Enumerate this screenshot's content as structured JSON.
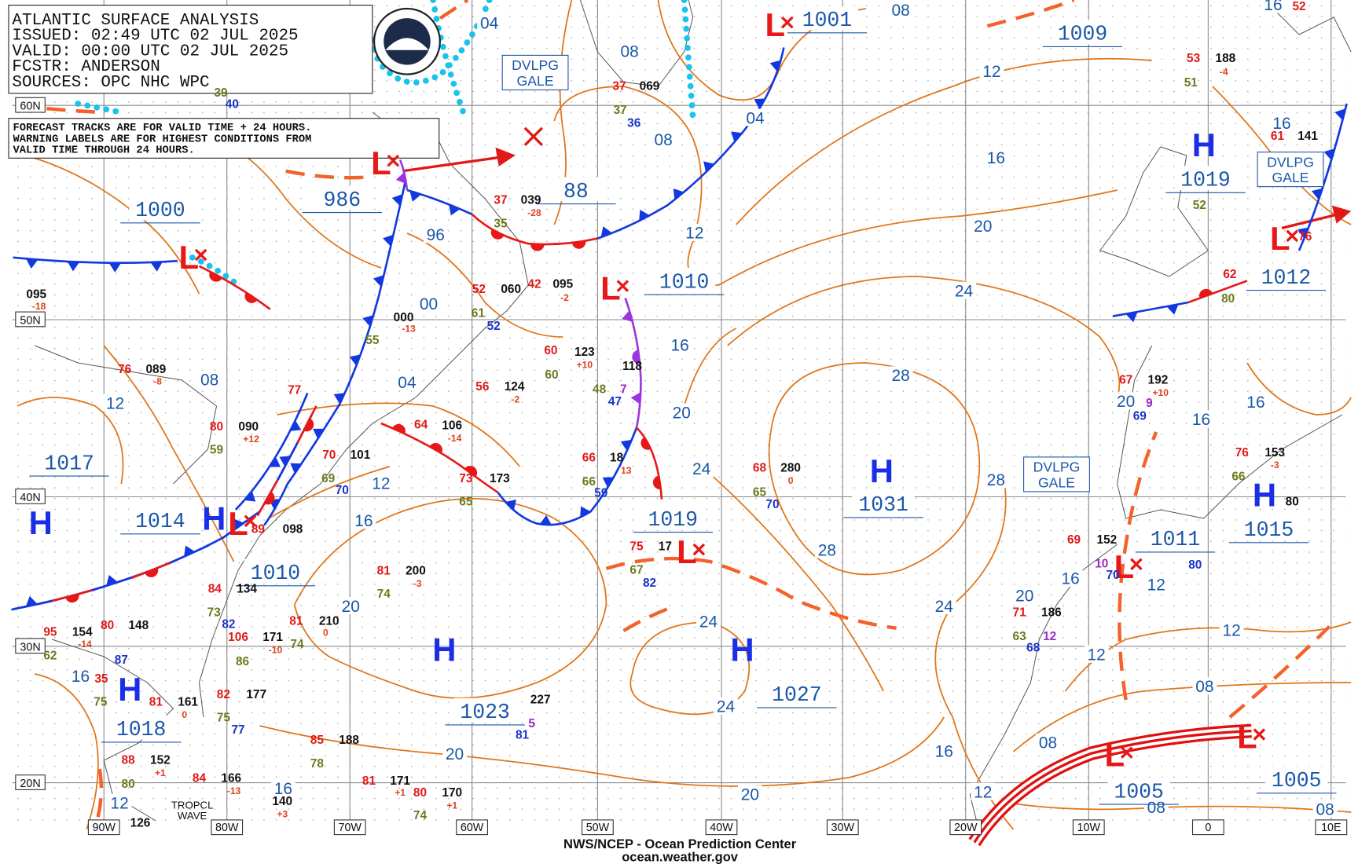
{
  "header": {
    "lines": [
      "ATLANTIC SURFACE ANALYSIS",
      "ISSUED: 02:49 UTC 02 JUL 2025",
      "VALID:  00:00 UTC 02 JUL 2025",
      "FCSTR:  ANDERSON",
      "SOURCES: OPC NHC WPC"
    ]
  },
  "note": {
    "lines": [
      "FORECAST TRACKS ARE FOR VALID TIME + 24 HOURS.",
      "WARNING LABELS ARE FOR HIGHEST CONDITIONS FROM",
      "VALID TIME THROUGH 24 HOURS."
    ]
  },
  "latitudes": [
    "60N",
    "50N",
    "40N",
    "30N",
    "20N"
  ],
  "longitudes": [
    "90W",
    "80W",
    "70W",
    "60W",
    "50W",
    "40W",
    "30W",
    "20W",
    "10W",
    "0",
    "10E"
  ],
  "highs": [
    "H",
    "H",
    "H",
    "H",
    "H",
    "H",
    "H",
    "H"
  ],
  "lows": [
    "L",
    "L",
    "L",
    "L",
    "L",
    "L",
    "L",
    "L",
    "L",
    "L"
  ],
  "pressure_labels": [
    "1001",
    "1009",
    "986",
    "1000",
    "88",
    "1010",
    "1019",
    "1012",
    "1017",
    "1031",
    "1014",
    "1010",
    "1019",
    "1011",
    "1015",
    "1023",
    "1027",
    "1018",
    "1005",
    "1005"
  ],
  "isobar_labels": [
    "04",
    "08",
    "08",
    "16",
    "12",
    "04",
    "08",
    "16",
    "16",
    "96",
    "12",
    "20",
    "00",
    "24",
    "16",
    "08",
    "12",
    "04",
    "28",
    "20",
    "16",
    "16",
    "20",
    "24",
    "12",
    "16",
    "28",
    "28",
    "12",
    "20",
    "24",
    "24",
    "20",
    "16",
    "12",
    "12",
    "16",
    "08",
    "24",
    "20",
    "16",
    "08",
    "20",
    "16",
    "12",
    "12",
    "08",
    "08"
  ],
  "warnings": [
    [
      "DVLPG",
      "GALE"
    ],
    [
      "DVLPG",
      "GALE"
    ],
    [
      "DVLPG",
      "GALE"
    ]
  ],
  "tropical": [
    "TROPCL",
    "WAVE"
  ],
  "observations": [
    "52",
    "53",
    "188",
    "-4",
    "51",
    "37",
    "069",
    "37",
    "36",
    "39",
    "40",
    "37",
    "039",
    "-28",
    "35",
    "61",
    "141",
    "52",
    "76",
    "62",
    "80",
    "095",
    "-18",
    "52",
    "060",
    "42",
    "095",
    "-2",
    "61",
    "52",
    "000",
    "-13",
    "55",
    "60",
    "123",
    "+10",
    "60",
    "118",
    "48",
    "7",
    "47",
    "76",
    "089",
    "-8",
    "67",
    "192",
    "+10",
    "9",
    "69",
    "80",
    "090",
    "+12",
    "59",
    "77",
    "64",
    "106",
    "-14",
    "56",
    "124",
    "-2",
    "70",
    "101",
    "69",
    "70",
    "73",
    "173",
    "65",
    "66",
    "18",
    "13",
    "66",
    "59",
    "68",
    "280",
    "0",
    "65",
    "70",
    "76",
    "153",
    "-3",
    "66",
    "80",
    "89",
    "098",
    "75",
    "17",
    "67",
    "82",
    "69",
    "152",
    "10",
    "70",
    "80",
    "81",
    "200",
    "-3",
    "74",
    "84",
    "134",
    "73",
    "82",
    "71",
    "186",
    "63",
    "12",
    "68",
    "95",
    "154",
    "-14",
    "62",
    "80",
    "148",
    "87",
    "81",
    "210",
    "0",
    "74",
    "106",
    "171",
    "-10",
    "86",
    "35",
    "81",
    "161",
    "0",
    "75",
    "82",
    "177",
    "75",
    "77",
    "227",
    "5",
    "81",
    "85",
    "188",
    "78",
    "88",
    "152",
    "+1",
    "80",
    "84",
    "166",
    "-13",
    "81",
    "171",
    "+1",
    "80",
    "170",
    "+1",
    "74",
    "140",
    "+3",
    "126"
  ],
  "footer": {
    "agency": "NWS/NCEP - Ocean Prediction Center",
    "url": "ocean.weather.gov"
  }
}
